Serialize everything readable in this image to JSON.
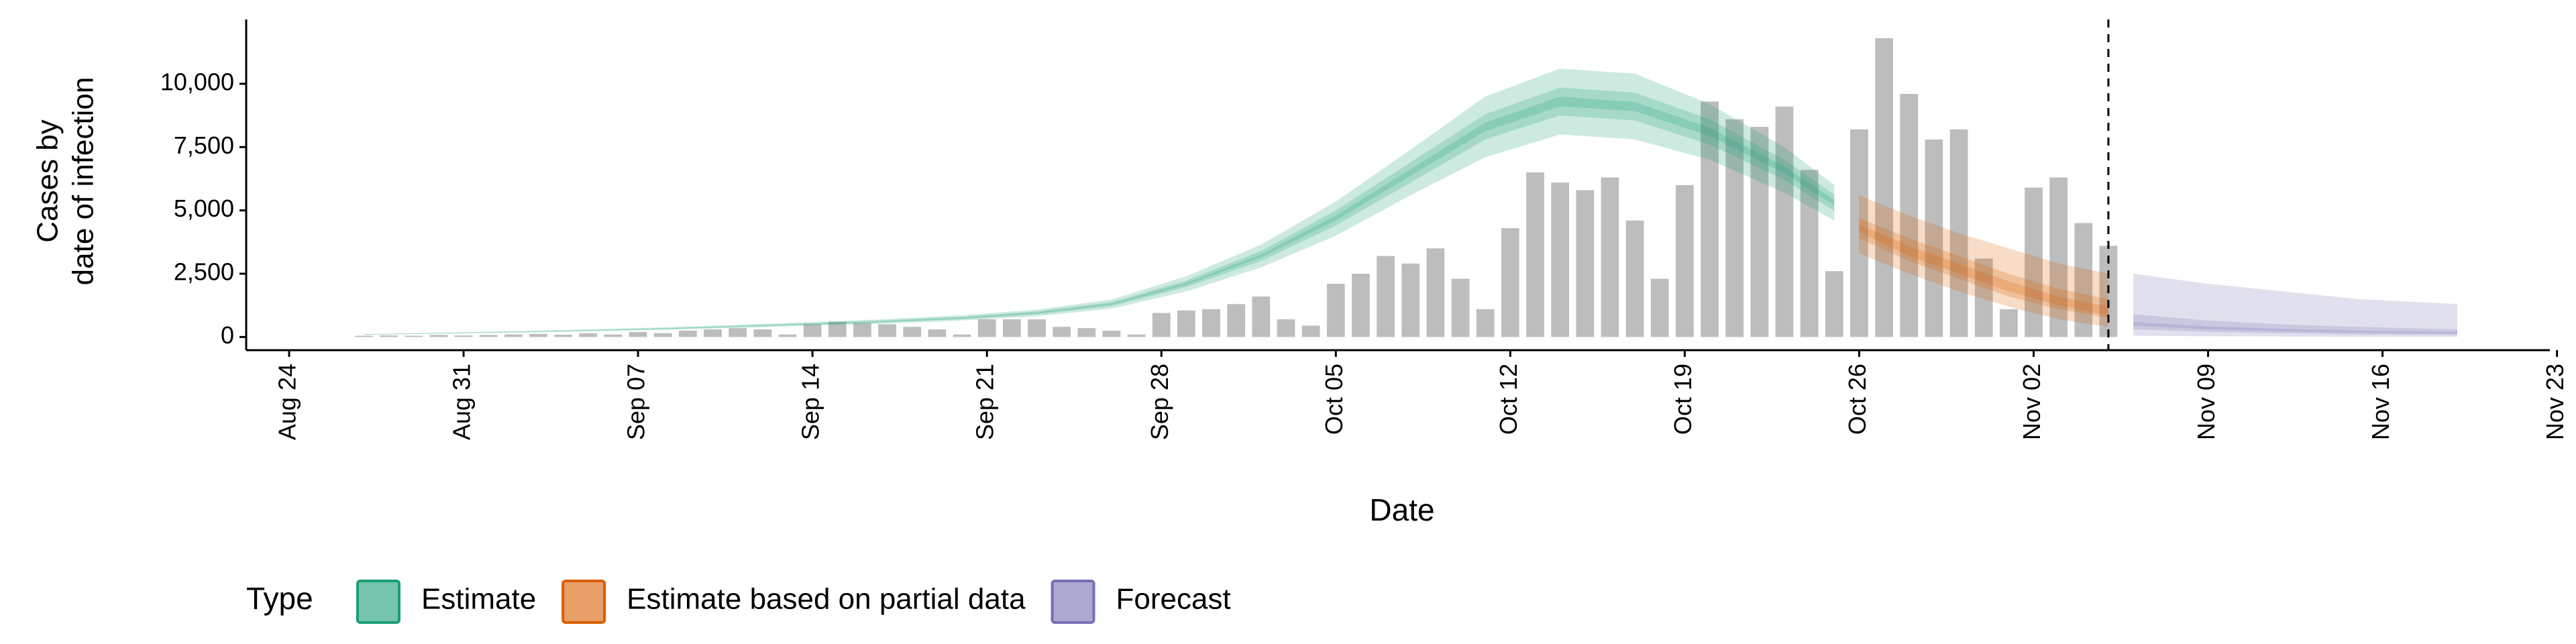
{
  "chart_data": {
    "type": "bar",
    "ylabel": [
      "Cases by",
      "date of infection"
    ],
    "xlabel": "Date",
    "x": [
      "Aug 24",
      "Aug 25",
      "Aug 26",
      "Aug 27",
      "Aug 28",
      "Aug 29",
      "Aug 30",
      "Aug 31",
      "Sep 01",
      "Sep 02",
      "Sep 03",
      "Sep 04",
      "Sep 05",
      "Sep 06",
      "Sep 07",
      "Sep 08",
      "Sep 09",
      "Sep 10",
      "Sep 11",
      "Sep 12",
      "Sep 13",
      "Sep 14",
      "Sep 15",
      "Sep 16",
      "Sep 17",
      "Sep 18",
      "Sep 19",
      "Sep 20",
      "Sep 21",
      "Sep 22",
      "Sep 23",
      "Sep 24",
      "Sep 25",
      "Sep 26",
      "Sep 27",
      "Sep 28",
      "Sep 29",
      "Sep 30",
      "Oct 01",
      "Oct 02",
      "Oct 03",
      "Oct 04",
      "Oct 05",
      "Oct 06",
      "Oct 07",
      "Oct 08",
      "Oct 09",
      "Oct 10",
      "Oct 11",
      "Oct 12",
      "Oct 13",
      "Oct 14",
      "Oct 15",
      "Oct 16",
      "Oct 17",
      "Oct 18",
      "Oct 19",
      "Oct 20",
      "Oct 21",
      "Oct 22",
      "Oct 23",
      "Oct 24",
      "Oct 25",
      "Oct 26",
      "Oct 27",
      "Oct 28",
      "Oct 29",
      "Oct 30",
      "Oct 31",
      "Nov 01",
      "Nov 02",
      "Nov 03",
      "Nov 04",
      "Nov 05",
      "Nov 06",
      "Nov 07",
      "Nov 08",
      "Nov 09",
      "Nov 10",
      "Nov 11",
      "Nov 12",
      "Nov 13",
      "Nov 14",
      "Nov 15",
      "Nov 16",
      "Nov 17",
      "Nov 18",
      "Nov 19",
      "Nov 20",
      "Nov 21",
      "Nov 22",
      "Nov 23"
    ],
    "values": [
      null,
      null,
      null,
      50,
      60,
      50,
      80,
      60,
      80,
      100,
      120,
      90,
      150,
      100,
      200,
      150,
      250,
      300,
      350,
      300,
      100,
      500,
      600,
      550,
      500,
      400,
      300,
      100,
      700,
      700,
      700,
      400,
      350,
      250,
      100,
      950,
      1050,
      1100,
      1300,
      1600,
      700,
      450,
      2100,
      2500,
      3200,
      2900,
      3500,
      2300,
      1100,
      4300,
      6500,
      6100,
      5800,
      6300,
      4600,
      2300,
      6000,
      9300,
      8600,
      8300,
      9100,
      6600,
      2600,
      8200,
      11800,
      9600,
      7800,
      8200,
      3100,
      1100,
      5900,
      6300,
      4500,
      3600,
      null,
      null,
      null,
      null,
      null,
      null,
      null,
      null,
      null,
      null,
      null,
      null,
      null,
      null,
      null,
      null,
      null,
      null
    ],
    "color": "#bdbdbd",
    "vline_x": "Nov 05",
    "series": [
      {
        "name": "Estimate",
        "color": "#1b9e77",
        "x": [
          "Aug 27",
          "Aug 30",
          "Sep 02",
          "Sep 05",
          "Sep 08",
          "Sep 11",
          "Sep 14",
          "Sep 17",
          "Sep 20",
          "Sep 23",
          "Sep 26",
          "Sep 29",
          "Oct 02",
          "Oct 05",
          "Oct 08",
          "Oct 11",
          "Oct 14",
          "Oct 17",
          "Oct 20",
          "Oct 23",
          "Oct 25"
        ],
        "bands": [
          {
            "lower": [
              85,
              130,
              170,
              220,
              280,
              360,
              450,
              530,
              650,
              820,
              1120,
              1800,
              2750,
              4000,
              5600,
              7100,
              8000,
              7800,
              7000,
              5700,
              4600
            ],
            "upper": [
              115,
              170,
              230,
              300,
              380,
              480,
              590,
              710,
              860,
              1080,
              1480,
              2400,
              3650,
              5350,
              7400,
              9500,
              10600,
              10400,
              9200,
              7500,
              6000
            ]
          },
          {
            "lower": [
              95,
              140,
              190,
              245,
              310,
              395,
              490,
              580,
              700,
              890,
              1220,
              1970,
              3000,
              4400,
              6100,
              7800,
              8750,
              8550,
              7600,
              6200,
              4980
            ],
            "upper": [
              105,
              160,
              210,
              275,
              350,
              445,
              550,
              660,
              800,
              1010,
              1380,
              2230,
              3400,
              5000,
              6900,
              8800,
              9850,
              9650,
              8600,
              7000,
              5620
            ]
          },
          {
            "lower": [
              98,
              147,
              196,
              255,
              323,
              412,
              510,
              608,
              735,
              930,
              1275,
              2060,
              3140,
              4600,
              6370,
              8130,
              9110,
              8920,
              7940,
              6470,
              5190
            ],
            "upper": [
              102,
              153,
              204,
              265,
              337,
              428,
              530,
              632,
              765,
              970,
              1325,
              2140,
              3260,
              4800,
              6630,
              8470,
              9490,
              9280,
              8260,
              6730,
              5410
            ]
          }
        ]
      },
      {
        "name": "Estimate based on partial data",
        "color": "#d95f02",
        "x": [
          "Oct 26",
          "Oct 28",
          "Oct 30",
          "Nov 01",
          "Nov 03",
          "Nov 05"
        ],
        "bands": [
          {
            "lower": [
              3300,
              2500,
              1800,
              1200,
              700,
              400
            ],
            "upper": [
              5600,
              4800,
              4100,
              3500,
              2900,
              2500
            ]
          },
          {
            "lower": [
              3900,
              3000,
              2300,
              1600,
              1100,
              750
            ],
            "upper": [
              4700,
              3900,
              3200,
              2500,
              1900,
              1500
            ]
          },
          {
            "lower": [
              4150,
              3200,
              2500,
              1800,
              1250,
              850
            ],
            "upper": [
              4450,
              3600,
              2900,
              2200,
              1600,
              1200
            ]
          }
        ]
      },
      {
        "name": "Forecast",
        "color": "#7570b3",
        "x": [
          "Nov 06",
          "Nov 09",
          "Nov 12",
          "Nov 15",
          "Nov 19"
        ],
        "bands": [
          {
            "lower": [
              50,
              30,
              20,
              10,
              10
            ],
            "upper": [
              2500,
              2100,
              1800,
              1500,
              1300
            ]
          },
          {
            "lower": [
              300,
              200,
              150,
              100,
              80
            ],
            "upper": [
              900,
              650,
              500,
              400,
              300
            ]
          },
          {
            "lower": [
              450,
              300,
              230,
              170,
              130
            ],
            "upper": [
              600,
              420,
              320,
              250,
              200
            ]
          }
        ]
      }
    ],
    "ylim": [
      -520,
      12540
    ],
    "yticks": [
      0,
      {
        "value": 2500,
        "label": "2,500"
      },
      {
        "value": 5000,
        "label": "5,000"
      },
      {
        "value": 7500,
        "label": "7,500"
      },
      {
        "value": 10000,
        "label": "10,000"
      }
    ],
    "xticks": [
      "Aug 24",
      "Aug 31",
      "Sep 07",
      "Sep 14",
      "Sep 21",
      "Sep 28",
      "Oct 05",
      "Oct 12",
      "Oct 19",
      "Oct 26",
      "Nov 02",
      "Nov 09",
      "Nov 16",
      "Nov 23"
    ],
    "legend_title": "Type",
    "legend": "bottom"
  }
}
